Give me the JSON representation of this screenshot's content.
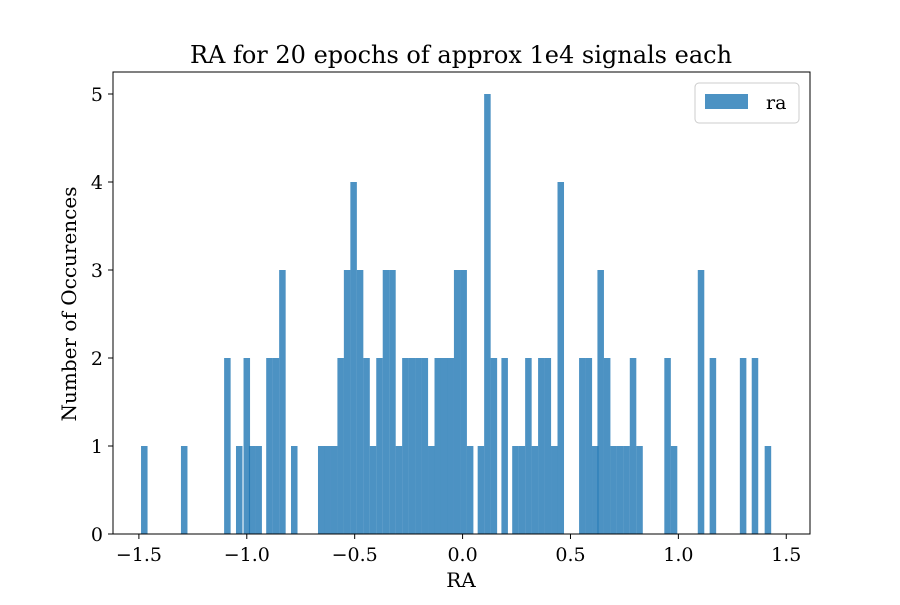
{
  "colors": {
    "bar": "#1f77b4",
    "bar_alpha": 0.8,
    "axis": "#000000",
    "background": "#ffffff"
  },
  "chart_data": {
    "type": "bar",
    "title": "RA for 20 epochs of approx 1e4 signals each",
    "xlabel": "RA",
    "ylabel": "Number of Occurences",
    "xlim": [
      -1.62,
      1.61
    ],
    "ylim": [
      0,
      5.25
    ],
    "grid": false,
    "legend": {
      "placement": "top-right",
      "entries": [
        "ra"
      ]
    },
    "x_ticks": [
      -1.5,
      -1.0,
      -0.5,
      0.0,
      0.5,
      1.0,
      1.5
    ],
    "x_tick_labels": [
      "−1.5",
      "−1.0",
      "−0.5",
      "0.0",
      "0.5",
      "1.0",
      "1.5"
    ],
    "y_ticks": [
      0,
      1,
      2,
      3,
      4,
      5
    ],
    "y_tick_labels": [
      "0",
      "1",
      "2",
      "3",
      "4",
      "5"
    ],
    "bin_width": 0.0302,
    "series": [
      {
        "name": "ra",
        "bins": [
          {
            "x": -1.475,
            "count": 1
          },
          {
            "x": -1.29,
            "count": 1
          },
          {
            "x": -1.09,
            "count": 2
          },
          {
            "x": -1.035,
            "count": 1
          },
          {
            "x": -1.0,
            "count": 2
          },
          {
            "x": -0.975,
            "count": 1
          },
          {
            "x": -0.945,
            "count": 1
          },
          {
            "x": -0.895,
            "count": 2
          },
          {
            "x": -0.865,
            "count": 2
          },
          {
            "x": -0.835,
            "count": 3
          },
          {
            "x": -0.78,
            "count": 1
          },
          {
            "x": -0.655,
            "count": 1
          },
          {
            "x": -0.625,
            "count": 1
          },
          {
            "x": -0.595,
            "count": 1
          },
          {
            "x": -0.565,
            "count": 2
          },
          {
            "x": -0.535,
            "count": 3
          },
          {
            "x": -0.505,
            "count": 4
          },
          {
            "x": -0.475,
            "count": 3
          },
          {
            "x": -0.445,
            "count": 2
          },
          {
            "x": -0.415,
            "count": 1
          },
          {
            "x": -0.385,
            "count": 2
          },
          {
            "x": -0.355,
            "count": 3
          },
          {
            "x": -0.325,
            "count": 3
          },
          {
            "x": -0.295,
            "count": 1
          },
          {
            "x": -0.265,
            "count": 2
          },
          {
            "x": -0.235,
            "count": 2
          },
          {
            "x": -0.205,
            "count": 2
          },
          {
            "x": -0.175,
            "count": 2
          },
          {
            "x": -0.145,
            "count": 1
          },
          {
            "x": -0.115,
            "count": 2
          },
          {
            "x": -0.085,
            "count": 2
          },
          {
            "x": -0.055,
            "count": 2
          },
          {
            "x": -0.025,
            "count": 3
          },
          {
            "x": 0.005,
            "count": 3
          },
          {
            "x": 0.035,
            "count": 1
          },
          {
            "x": 0.085,
            "count": 1
          },
          {
            "x": 0.115,
            "count": 5
          },
          {
            "x": 0.145,
            "count": 2
          },
          {
            "x": 0.195,
            "count": 2
          },
          {
            "x": 0.245,
            "count": 1
          },
          {
            "x": 0.275,
            "count": 1
          },
          {
            "x": 0.305,
            "count": 2
          },
          {
            "x": 0.335,
            "count": 1
          },
          {
            "x": 0.365,
            "count": 2
          },
          {
            "x": 0.395,
            "count": 2
          },
          {
            "x": 0.425,
            "count": 1
          },
          {
            "x": 0.455,
            "count": 4
          },
          {
            "x": 0.555,
            "count": 2
          },
          {
            "x": 0.585,
            "count": 2
          },
          {
            "x": 0.615,
            "count": 1
          },
          {
            "x": 0.64,
            "count": 3
          },
          {
            "x": 0.67,
            "count": 2
          },
          {
            "x": 0.7,
            "count": 1
          },
          {
            "x": 0.73,
            "count": 1
          },
          {
            "x": 0.76,
            "count": 1
          },
          {
            "x": 0.79,
            "count": 2
          },
          {
            "x": 0.82,
            "count": 1
          },
          {
            "x": 0.95,
            "count": 2
          },
          {
            "x": 0.98,
            "count": 1
          },
          {
            "x": 1.105,
            "count": 3
          },
          {
            "x": 1.16,
            "count": 2
          },
          {
            "x": 1.3,
            "count": 2
          },
          {
            "x": 1.355,
            "count": 2
          },
          {
            "x": 1.415,
            "count": 1
          }
        ]
      }
    ]
  }
}
